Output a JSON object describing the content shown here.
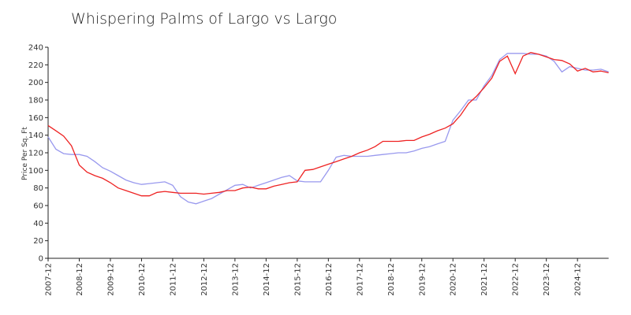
{
  "chart_data": {
    "type": "line",
    "title": "Whispering Palms of Largo vs Largo",
    "y_label": "Price Per Sq. Ft",
    "categories": [
      "2007-12",
      null,
      null,
      null,
      "2008-12",
      null,
      null,
      null,
      "2009-12",
      null,
      null,
      null,
      "2010-12",
      null,
      null,
      null,
      "2011-12",
      null,
      null,
      null,
      "2012-12",
      null,
      null,
      null,
      "2013-12",
      null,
      null,
      null,
      "2014-12",
      null,
      null,
      null,
      "2015-12",
      null,
      null,
      null,
      "2016-12",
      null,
      null,
      null,
      "2017-12",
      null,
      null,
      null,
      "2018-12",
      null,
      null,
      null,
      "2019-12",
      null,
      null,
      null,
      "2020-12",
      null,
      null,
      null,
      "2021-12",
      null,
      null,
      null,
      "2022-12",
      null,
      null,
      null,
      "2023-12",
      null,
      null,
      null,
      "2024-12",
      null,
      null,
      null,
      null
    ],
    "series": [
      {
        "color": "#9999ee",
        "values": [
          138,
          124,
          119,
          118,
          118,
          116,
          110,
          103,
          99,
          94,
          89,
          86,
          84,
          85,
          86,
          87,
          83,
          70,
          64,
          62,
          65,
          68,
          73,
          78,
          83,
          84,
          80,
          83,
          86,
          89,
          92,
          94,
          88,
          87,
          87,
          87,
          100,
          115,
          117,
          116,
          116,
          116,
          117,
          118,
          119,
          120,
          120,
          122,
          125,
          127,
          130,
          133,
          157,
          168,
          180,
          180,
          196,
          208,
          226,
          233,
          233,
          233,
          232,
          232,
          230,
          224,
          212,
          218,
          216,
          214,
          214,
          215,
          212
        ]
      },
      {
        "color": "#ee2222",
        "values": [
          151,
          145,
          139,
          128,
          106,
          98,
          94,
          91,
          86,
          80,
          77,
          74,
          71,
          71,
          75,
          76,
          75,
          74,
          74,
          74,
          73,
          74,
          75,
          77,
          77,
          80,
          81,
          79,
          79,
          82,
          84,
          86,
          87,
          100,
          101,
          104,
          107,
          110,
          113,
          116,
          120,
          123,
          127,
          133,
          133,
          133,
          134,
          134,
          138,
          141,
          145,
          148,
          153,
          163,
          176,
          184,
          194,
          205,
          224,
          230,
          210,
          230,
          234,
          232,
          229,
          226,
          225,
          221,
          213,
          216,
          212,
          213,
          211
        ]
      }
    ],
    "ylim": [
      0,
      240
    ],
    "yticks": [
      0,
      20,
      40,
      60,
      80,
      100,
      120,
      140,
      160,
      180,
      200,
      220,
      240
    ],
    "grid": false
  }
}
